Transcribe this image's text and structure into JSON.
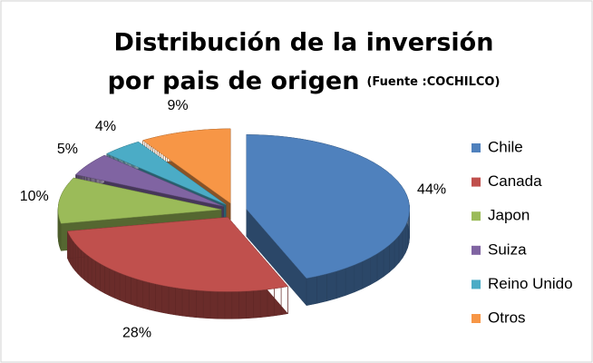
{
  "chart_data": {
    "type": "pie3d",
    "title": [
      "Distribución de la inversión",
      "por pais de origen"
    ],
    "subtitle": "(Fuente :COCHILCO)",
    "categories": [
      "Chile",
      "Canada",
      "Japon",
      "Suiza",
      "Reino Unido",
      "Otros"
    ],
    "values": [
      44,
      28,
      10,
      5,
      4,
      9
    ],
    "value_labels": [
      "44%",
      "28%",
      "10%",
      "5%",
      "4%",
      "9%"
    ],
    "colors": [
      "#4f81bd",
      "#c0504d",
      "#9bbb59",
      "#8064a2",
      "#4bacc6",
      "#f79646"
    ],
    "legend": "right"
  }
}
